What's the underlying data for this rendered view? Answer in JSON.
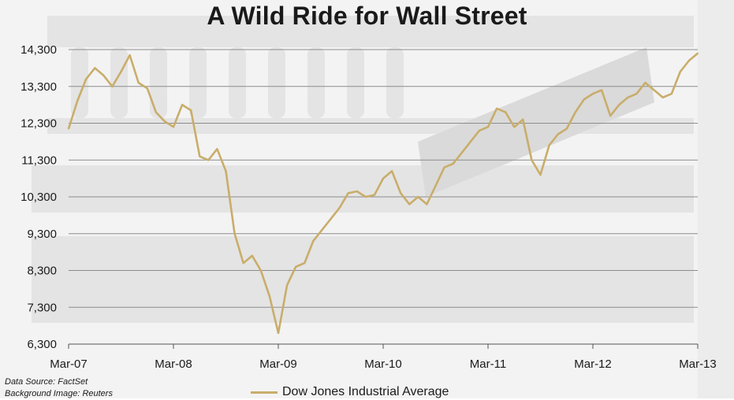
{
  "colors": {
    "series": "#C9AD6B",
    "grid": "#8c8c8c",
    "axis": "#555555"
  },
  "source": {
    "data_line": "Data Source: FactSet",
    "image_line": "Background Image: Reuters"
  },
  "chart_data": {
    "type": "line",
    "title": "A Wild Ride for Wall Street",
    "xlabel": "",
    "ylabel": "",
    "ylim": [
      6300,
      14300
    ],
    "yticks": [
      "6,300",
      "7,300",
      "8,300",
      "9,300",
      "10,300",
      "11,300",
      "12,300",
      "13,300",
      "14,300"
    ],
    "ytick_values": [
      6300,
      7300,
      8300,
      9300,
      10300,
      11300,
      12300,
      13300,
      14300
    ],
    "xtick_labels": [
      "Mar-07",
      "Mar-08",
      "Mar-09",
      "Mar-10",
      "Mar-11",
      "Mar-12",
      "Mar-13"
    ],
    "xlim": [
      "Mar-07",
      "Mar-13"
    ],
    "grid": true,
    "legend_position": "bottom",
    "series": [
      {
        "name": "Dow Jones Industrial Average",
        "x": [
          "Mar-07",
          "Apr-07",
          "May-07",
          "Jun-07",
          "Jul-07",
          "Aug-07",
          "Sep-07",
          "Oct-07",
          "Nov-07",
          "Dec-07",
          "Jan-08",
          "Feb-08",
          "Mar-08",
          "Apr-08",
          "May-08",
          "Jun-08",
          "Jul-08",
          "Aug-08",
          "Sep-08",
          "Oct-08",
          "Nov-08",
          "Dec-08",
          "Jan-09",
          "Feb-09",
          "Mar-09",
          "Apr-09",
          "May-09",
          "Jun-09",
          "Jul-09",
          "Aug-09",
          "Sep-09",
          "Oct-09",
          "Nov-09",
          "Dec-09",
          "Jan-10",
          "Feb-10",
          "Mar-10",
          "Apr-10",
          "May-10",
          "Jun-10",
          "Jul-10",
          "Aug-10",
          "Sep-10",
          "Oct-10",
          "Nov-10",
          "Dec-10",
          "Jan-11",
          "Feb-11",
          "Mar-11",
          "Apr-11",
          "May-11",
          "Jun-11",
          "Jul-11",
          "Aug-11",
          "Sep-11",
          "Oct-11",
          "Nov-11",
          "Dec-11",
          "Jan-12",
          "Feb-12",
          "Mar-12",
          "Apr-12",
          "May-12",
          "Jun-12",
          "Jul-12",
          "Aug-12",
          "Sep-12",
          "Oct-12",
          "Nov-12",
          "Dec-12",
          "Jan-13",
          "Feb-13",
          "Mar-13"
        ],
        "values": [
          12150,
          12900,
          13500,
          13800,
          13600,
          13300,
          13700,
          14150,
          13400,
          13250,
          12600,
          12350,
          12200,
          12800,
          12650,
          11400,
          11300,
          11600,
          11000,
          9300,
          8500,
          8700,
          8300,
          7600,
          6600,
          7900,
          8400,
          8500,
          9100,
          9400,
          9700,
          10000,
          10400,
          10450,
          10300,
          10350,
          10800,
          11000,
          10400,
          10100,
          10300,
          10100,
          10600,
          11100,
          11200,
          11500,
          11800,
          12100,
          12200,
          12700,
          12600,
          12200,
          12400,
          11300,
          10900,
          11700,
          12000,
          12150,
          12600,
          12950,
          13100,
          13200,
          12500,
          12800,
          13000,
          13100,
          13400,
          13200,
          13000,
          13100,
          13700,
          14000,
          14200
        ]
      }
    ]
  }
}
